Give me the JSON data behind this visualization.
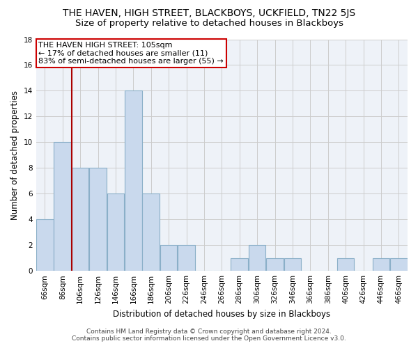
{
  "title": "THE HAVEN, HIGH STREET, BLACKBOYS, UCKFIELD, TN22 5JS",
  "subtitle": "Size of property relative to detached houses in Blackboys",
  "xlabel": "Distribution of detached houses by size in Blackboys",
  "ylabel": "Number of detached properties",
  "categories": [
    "66sqm",
    "86sqm",
    "106sqm",
    "126sqm",
    "146sqm",
    "166sqm",
    "186sqm",
    "206sqm",
    "226sqm",
    "246sqm",
    "266sqm",
    "286sqm",
    "306sqm",
    "326sqm",
    "346sqm",
    "366sqm",
    "386sqm",
    "406sqm",
    "426sqm",
    "446sqm",
    "466sqm"
  ],
  "values": [
    4,
    10,
    8,
    8,
    6,
    14,
    6,
    2,
    2,
    0,
    0,
    1,
    2,
    1,
    1,
    0,
    0,
    1,
    0,
    1,
    1
  ],
  "bar_color": "#c9d9ed",
  "bar_edge_color": "#8aafc8",
  "vline_color": "#aa0000",
  "annotation_line1": "THE HAVEN HIGH STREET: 105sqm",
  "annotation_line2": "← 17% of detached houses are smaller (11)",
  "annotation_line3": "83% of semi-detached houses are larger (55) →",
  "annotation_box_color": "#ffffff",
  "annotation_box_edge": "#cc0000",
  "ylim": [
    0,
    18
  ],
  "yticks": [
    0,
    2,
    4,
    6,
    8,
    10,
    12,
    14,
    16,
    18
  ],
  "grid_color": "#cccccc",
  "background_color": "#eef2f8",
  "footer_line1": "Contains HM Land Registry data © Crown copyright and database right 2024.",
  "footer_line2": "Contains public sector information licensed under the Open Government Licence v3.0.",
  "title_fontsize": 10,
  "subtitle_fontsize": 9.5,
  "axis_label_fontsize": 8.5,
  "tick_fontsize": 7.5,
  "annotation_fontsize": 8,
  "footer_fontsize": 6.5
}
